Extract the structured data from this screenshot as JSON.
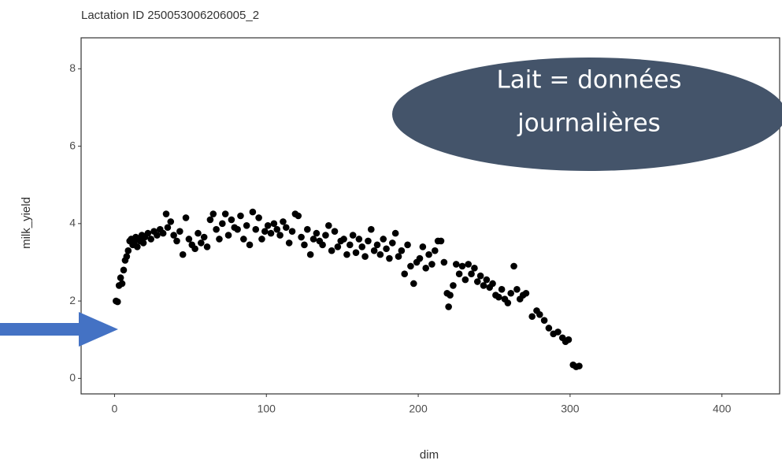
{
  "chart_data": {
    "type": "scatter",
    "title": "Lactation ID 250053006206005_2",
    "x_label": "dim",
    "y_label": "milk_yield",
    "annotation": [
      "Lait = données",
      "journalières"
    ],
    "color": "#000000",
    "xlim": [
      -22,
      438
    ],
    "ylim": [
      -0.4,
      8.8
    ],
    "xticks": [
      0,
      100,
      200,
      300,
      400
    ],
    "yticks": [
      0,
      2,
      4,
      6,
      8
    ],
    "grid": false,
    "x": [
      1,
      2,
      3,
      4,
      5,
      6,
      7,
      8,
      9,
      10,
      11,
      12,
      13,
      14,
      15,
      16,
      17,
      18,
      19,
      20,
      22,
      24,
      26,
      28,
      30,
      32,
      34,
      35,
      37,
      39,
      41,
      43,
      45,
      47,
      49,
      51,
      53,
      55,
      57,
      59,
      61,
      63,
      65,
      67,
      69,
      71,
      73,
      75,
      77,
      79,
      81,
      83,
      85,
      87,
      89,
      91,
      93,
      95,
      97,
      99,
      101,
      103,
      105,
      107,
      109,
      111,
      113,
      115,
      117,
      119,
      121,
      123,
      125,
      127,
      129,
      131,
      133,
      135,
      137,
      139,
      141,
      143,
      145,
      147,
      149,
      151,
      153,
      155,
      157,
      159,
      161,
      163,
      165,
      167,
      169,
      171,
      173,
      175,
      177,
      179,
      181,
      183,
      185,
      187,
      189,
      191,
      193,
      195,
      197,
      199,
      201,
      203,
      205,
      207,
      209,
      211,
      213,
      215,
      217,
      219,
      220,
      221,
      223,
      225,
      227,
      229,
      231,
      233,
      235,
      237,
      239,
      241,
      243,
      245,
      247,
      249,
      251,
      253,
      255,
      257,
      259,
      261,
      263,
      265,
      267,
      269,
      271,
      275,
      278,
      280,
      283,
      286,
      289,
      292,
      295,
      297,
      299,
      302,
      304,
      306
    ],
    "values": [
      2.0,
      1.98,
      2.4,
      2.6,
      2.45,
      2.8,
      3.05,
      3.15,
      3.3,
      3.55,
      3.6,
      3.45,
      3.5,
      3.65,
      3.4,
      3.6,
      3.55,
      3.7,
      3.5,
      3.65,
      3.75,
      3.6,
      3.8,
      3.7,
      3.85,
      3.75,
      4.25,
      3.9,
      4.05,
      3.7,
      3.55,
      3.8,
      3.2,
      4.15,
      3.6,
      3.45,
      3.35,
      3.75,
      3.5,
      3.65,
      3.4,
      4.1,
      4.25,
      3.85,
      3.6,
      4.0,
      4.25,
      3.7,
      4.1,
      3.9,
      3.85,
      4.2,
      3.6,
      3.95,
      3.45,
      4.3,
      3.85,
      4.15,
      3.6,
      3.8,
      3.95,
      3.75,
      4.0,
      3.85,
      3.7,
      4.05,
      3.9,
      3.5,
      3.8,
      4.25,
      4.2,
      3.65,
      3.45,
      3.85,
      3.2,
      3.6,
      3.75,
      3.55,
      3.45,
      3.7,
      3.95,
      3.3,
      3.8,
      3.4,
      3.55,
      3.6,
      3.2,
      3.45,
      3.7,
      3.25,
      3.6,
      3.4,
      3.15,
      3.55,
      3.85,
      3.3,
      3.45,
      3.2,
      3.6,
      3.35,
      3.1,
      3.5,
      3.75,
      3.15,
      3.3,
      2.7,
      3.45,
      2.9,
      2.45,
      3.0,
      3.1,
      3.4,
      2.85,
      3.2,
      2.95,
      3.3,
      3.55,
      3.55,
      3.0,
      2.2,
      1.85,
      2.15,
      2.4,
      2.95,
      2.7,
      2.9,
      2.55,
      2.95,
      2.7,
      2.85,
      2.5,
      2.65,
      2.4,
      2.55,
      2.35,
      2.45,
      2.15,
      2.1,
      2.3,
      2.05,
      1.95,
      2.2,
      2.9,
      2.3,
      2.05,
      2.15,
      2.2,
      1.6,
      1.75,
      1.65,
      1.5,
      1.3,
      1.15,
      1.2,
      1.05,
      0.95,
      1.0,
      0.35,
      0.3,
      0.32
    ]
  }
}
